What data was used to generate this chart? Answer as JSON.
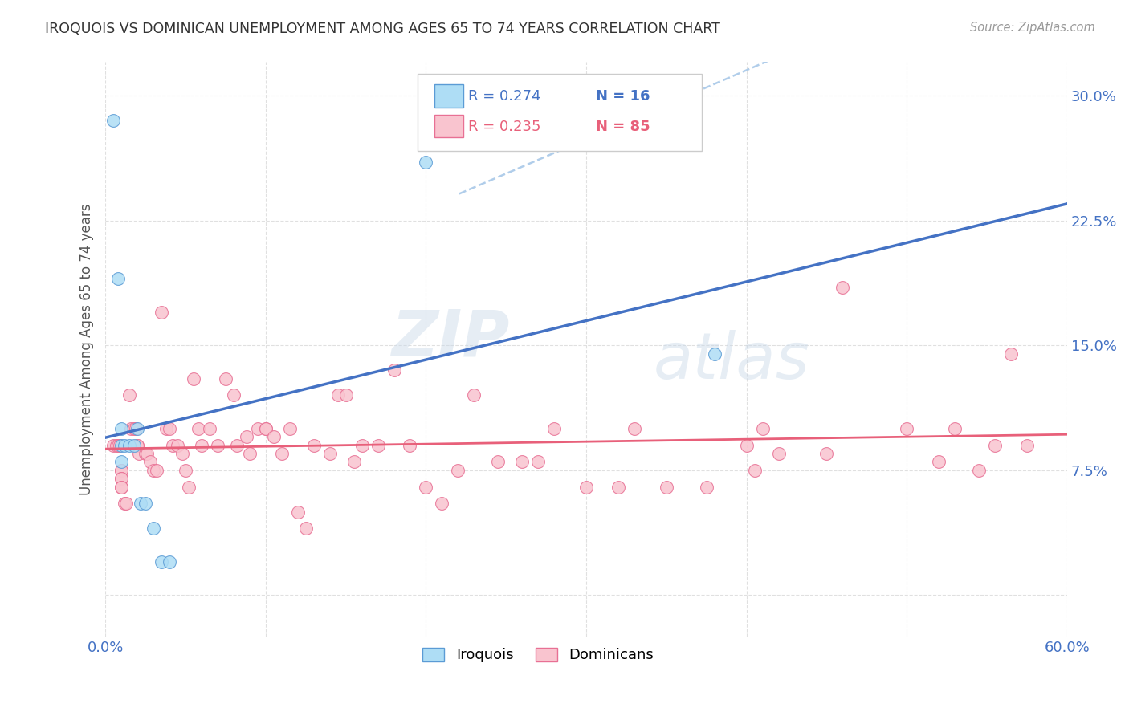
{
  "title": "IROQUOIS VS DOMINICAN UNEMPLOYMENT AMONG AGES 65 TO 74 YEARS CORRELATION CHART",
  "source": "Source: ZipAtlas.com",
  "ylabel": "Unemployment Among Ages 65 to 74 years",
  "xlim": [
    0.0,
    0.6
  ],
  "ylim": [
    -0.025,
    0.32
  ],
  "xticks": [
    0.0,
    0.1,
    0.2,
    0.3,
    0.4,
    0.5,
    0.6
  ],
  "xtick_labels": [
    "0.0%",
    "",
    "",
    "",
    "",
    "",
    "60.0%"
  ],
  "yticks": [
    0.0,
    0.075,
    0.15,
    0.225,
    0.3
  ],
  "ytick_labels": [
    "",
    "7.5%",
    "15.0%",
    "22.5%",
    "30.0%"
  ],
  "legend_r1": "R = 0.274",
  "legend_n1": "N = 16",
  "legend_r2": "R = 0.235",
  "legend_n2": "N = 85",
  "color_iroquois_fill": "#AEDDF5",
  "color_iroquois_edge": "#5B9BD5",
  "color_dominican_fill": "#F9C4CF",
  "color_dominican_edge": "#E87094",
  "color_line_iroquois": "#4472C4",
  "color_line_dominican": "#E8607A",
  "color_dashed": "#A8C8E8",
  "color_title": "#333333",
  "color_axis_labels": "#4472C4",
  "color_source": "#999999",
  "background": "#FFFFFF",
  "watermark_zip": "ZIP",
  "watermark_atlas": "atlas",
  "iroquois_x": [
    0.005,
    0.008,
    0.01,
    0.01,
    0.012,
    0.015,
    0.018,
    0.02,
    0.022,
    0.025,
    0.03,
    0.035,
    0.04,
    0.2,
    0.38,
    0.01
  ],
  "iroquois_y": [
    0.285,
    0.19,
    0.1,
    0.09,
    0.09,
    0.09,
    0.09,
    0.1,
    0.055,
    0.055,
    0.04,
    0.02,
    0.02,
    0.26,
    0.145,
    0.08
  ],
  "dominican_x": [
    0.005,
    0.007,
    0.008,
    0.009,
    0.01,
    0.01,
    0.01,
    0.01,
    0.01,
    0.01,
    0.012,
    0.013,
    0.015,
    0.016,
    0.018,
    0.019,
    0.02,
    0.02,
    0.021,
    0.025,
    0.026,
    0.028,
    0.03,
    0.032,
    0.035,
    0.038,
    0.04,
    0.042,
    0.045,
    0.048,
    0.05,
    0.052,
    0.055,
    0.058,
    0.06,
    0.065,
    0.07,
    0.075,
    0.08,
    0.082,
    0.088,
    0.09,
    0.095,
    0.1,
    0.1,
    0.105,
    0.11,
    0.115,
    0.12,
    0.125,
    0.13,
    0.14,
    0.145,
    0.15,
    0.155,
    0.16,
    0.17,
    0.18,
    0.19,
    0.2,
    0.21,
    0.22,
    0.23,
    0.245,
    0.26,
    0.27,
    0.28,
    0.3,
    0.32,
    0.33,
    0.35,
    0.375,
    0.4,
    0.405,
    0.41,
    0.42,
    0.45,
    0.46,
    0.5,
    0.52,
    0.53,
    0.545,
    0.555,
    0.565,
    0.575
  ],
  "dominican_y": [
    0.09,
    0.09,
    0.09,
    0.09,
    0.075,
    0.075,
    0.07,
    0.07,
    0.065,
    0.065,
    0.055,
    0.055,
    0.12,
    0.1,
    0.1,
    0.1,
    0.09,
    0.09,
    0.085,
    0.085,
    0.085,
    0.08,
    0.075,
    0.075,
    0.17,
    0.1,
    0.1,
    0.09,
    0.09,
    0.085,
    0.075,
    0.065,
    0.13,
    0.1,
    0.09,
    0.1,
    0.09,
    0.13,
    0.12,
    0.09,
    0.095,
    0.085,
    0.1,
    0.1,
    0.1,
    0.095,
    0.085,
    0.1,
    0.05,
    0.04,
    0.09,
    0.085,
    0.12,
    0.12,
    0.08,
    0.09,
    0.09,
    0.135,
    0.09,
    0.065,
    0.055,
    0.075,
    0.12,
    0.08,
    0.08,
    0.08,
    0.1,
    0.065,
    0.065,
    0.1,
    0.065,
    0.065,
    0.09,
    0.075,
    0.1,
    0.085,
    0.085,
    0.185,
    0.1,
    0.08,
    0.1,
    0.075,
    0.09,
    0.145,
    0.09
  ]
}
